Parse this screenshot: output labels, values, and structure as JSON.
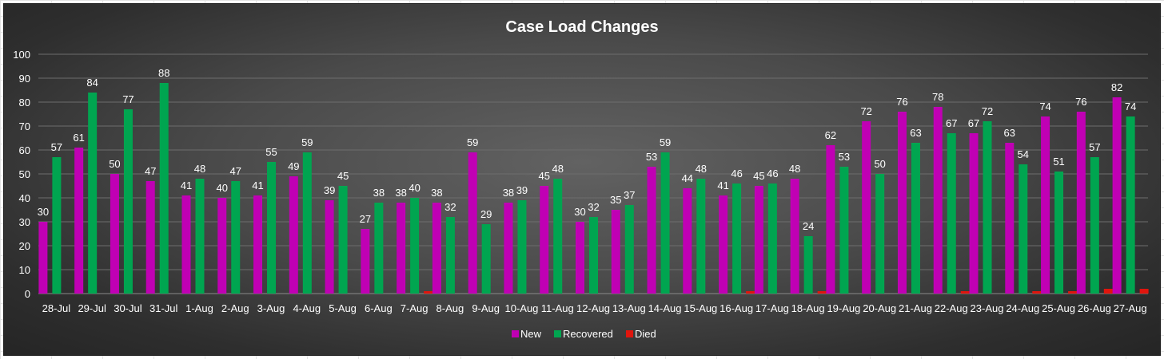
{
  "chart_data": {
    "type": "bar",
    "title": "Case Load Changes",
    "categories": [
      "28-Jul",
      "29-Jul",
      "30-Jul",
      "31-Jul",
      "1-Aug",
      "2-Aug",
      "3-Aug",
      "4-Aug",
      "5-Aug",
      "6-Aug",
      "7-Aug",
      "8-Aug",
      "9-Aug",
      "10-Aug",
      "11-Aug",
      "12-Aug",
      "13-Aug",
      "14-Aug",
      "15-Aug",
      "16-Aug",
      "17-Aug",
      "18-Aug",
      "19-Aug",
      "20-Aug",
      "21-Aug",
      "22-Aug",
      "23-Aug",
      "24-Aug",
      "25-Aug",
      "26-Aug",
      "27-Aug"
    ],
    "series": [
      {
        "name": "New",
        "color": "#c000b4",
        "values": [
          30,
          61,
          50,
          47,
          41,
          40,
          41,
          49,
          39,
          27,
          38,
          38,
          59,
          38,
          45,
          30,
          35,
          53,
          44,
          41,
          45,
          48,
          62,
          72,
          76,
          78,
          67,
          63,
          74,
          76,
          82
        ]
      },
      {
        "name": "Recovered",
        "color": "#00a550",
        "values": [
          57,
          84,
          77,
          88,
          48,
          47,
          55,
          59,
          45,
          38,
          40,
          32,
          29,
          39,
          48,
          32,
          37,
          59,
          48,
          46,
          46,
          24,
          53,
          50,
          63,
          67,
          72,
          54,
          51,
          57,
          74
        ]
      },
      {
        "name": "Died",
        "color": "#e0150d",
        "values": [
          0,
          0,
          0,
          0,
          0,
          0,
          0,
          0,
          0,
          0,
          1,
          0,
          0,
          0,
          0,
          0,
          0,
          0,
          0,
          1,
          0,
          1,
          0,
          0,
          0,
          1,
          0,
          1,
          1,
          2,
          2
        ]
      }
    ],
    "ylim": [
      0,
      100
    ],
    "yticks": [
      0,
      10,
      20,
      30,
      40,
      50,
      60,
      70,
      80,
      90,
      100
    ],
    "grid": true,
    "legend": "bottom",
    "data_labels_series": [
      "New",
      "Recovered"
    ]
  }
}
